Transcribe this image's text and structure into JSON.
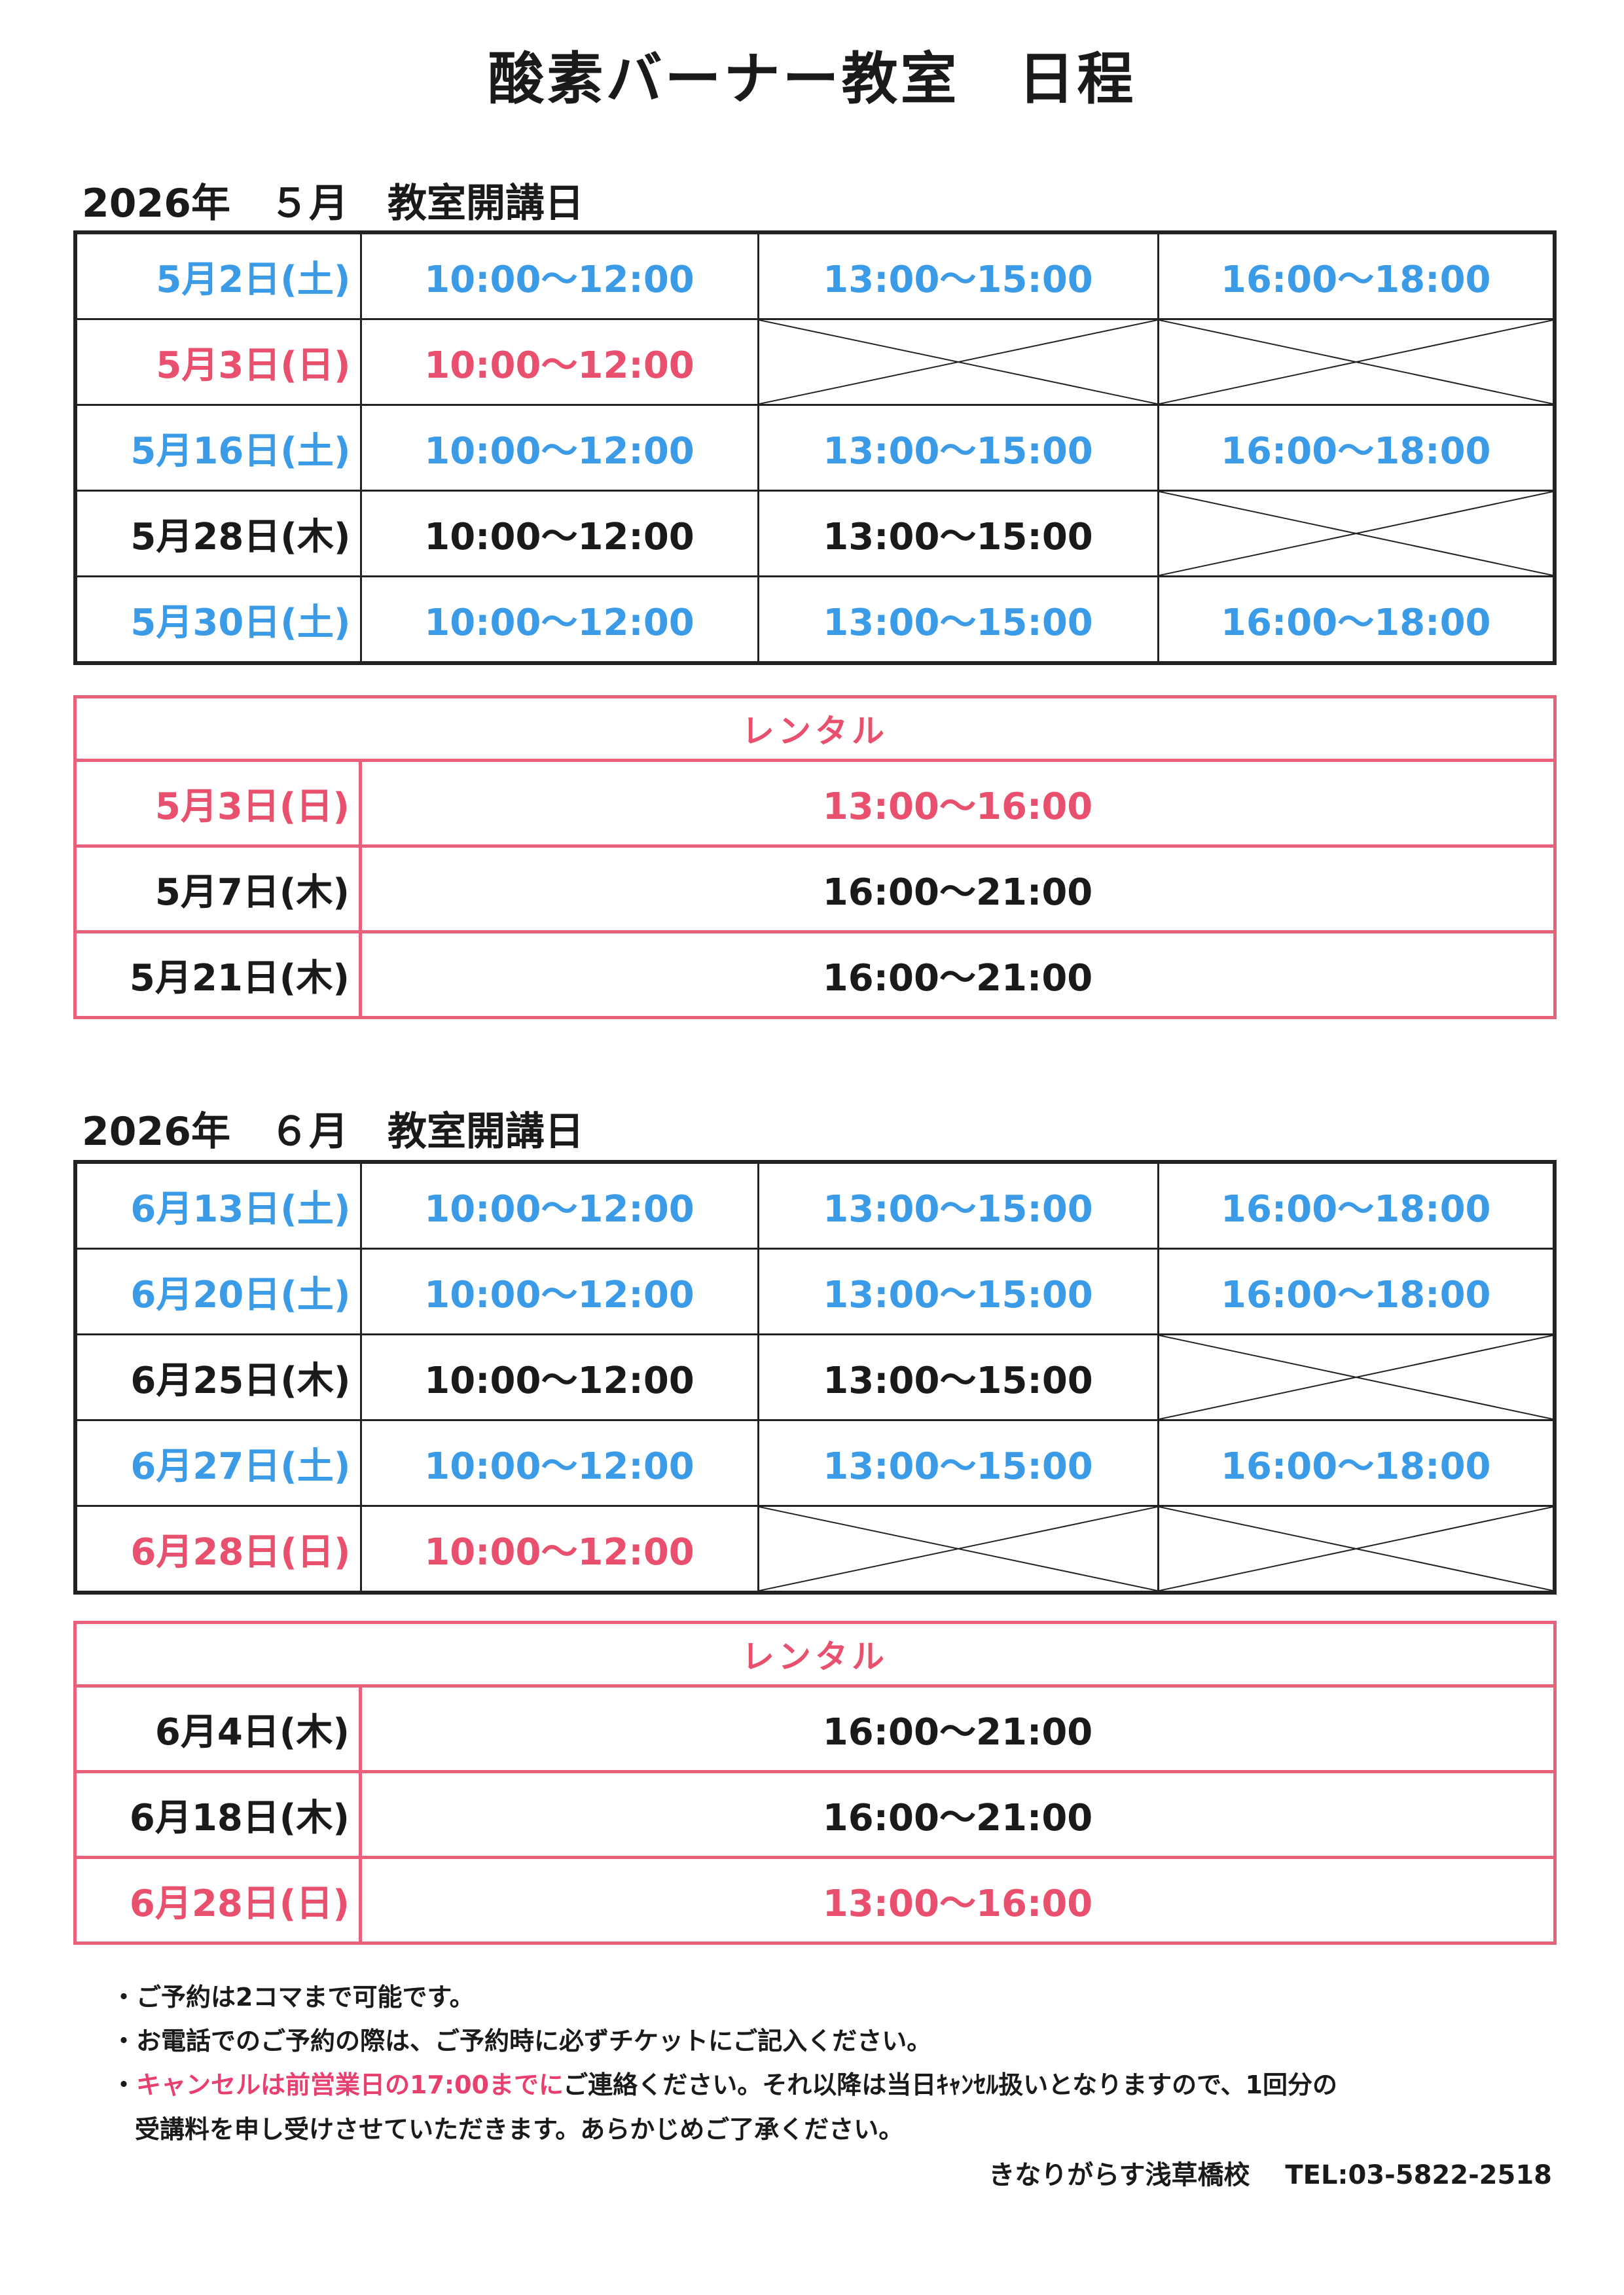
{
  "title": "酸素バーナー教室　日程",
  "colors": {
    "blue": "#3b9be6",
    "red": "#e8506e",
    "rental_border": "#e8607a"
  },
  "sections": [
    {
      "heading": "2026年　５月　教室開講日",
      "schedule": [
        {
          "date": "5月2日(土)",
          "color": "blue",
          "slots": [
            "10:00〜12:00",
            "13:00〜15:00",
            "16:00〜18:00"
          ]
        },
        {
          "date": "5月3日(日)",
          "color": "red",
          "slots": [
            "10:00〜12:00",
            null,
            null
          ]
        },
        {
          "date": "5月16日(土)",
          "color": "blue",
          "slots": [
            "10:00〜12:00",
            "13:00〜15:00",
            "16:00〜18:00"
          ]
        },
        {
          "date": "5月28日(木)",
          "color": "black",
          "slots": [
            "10:00〜12:00",
            "13:00〜15:00",
            null
          ]
        },
        {
          "date": "5月30日(土)",
          "color": "blue",
          "slots": [
            "10:00〜12:00",
            "13:00〜15:00",
            "16:00〜18:00"
          ]
        }
      ],
      "rental_label": "レンタル",
      "rental": [
        {
          "date": "5月3日(日)",
          "color": "red",
          "time": "13:00〜16:00"
        },
        {
          "date": "5月7日(木)",
          "color": "black",
          "time": "16:00〜21:00"
        },
        {
          "date": "5月21日(木)",
          "color": "black",
          "time": "16:00〜21:00"
        }
      ]
    },
    {
      "heading": "2026年　６月　教室開講日",
      "schedule": [
        {
          "date": "6月13日(土)",
          "color": "blue",
          "slots": [
            "10:00〜12:00",
            "13:00〜15:00",
            "16:00〜18:00"
          ]
        },
        {
          "date": "6月20日(土)",
          "color": "blue",
          "slots": [
            "10:00〜12:00",
            "13:00〜15:00",
            "16:00〜18:00"
          ]
        },
        {
          "date": "6月25日(木)",
          "color": "black",
          "slots": [
            "10:00〜12:00",
            "13:00〜15:00",
            null
          ]
        },
        {
          "date": "6月27日(土)",
          "color": "blue",
          "slots": [
            "10:00〜12:00",
            "13:00〜15:00",
            "16:00〜18:00"
          ]
        },
        {
          "date": "6月28日(日)",
          "color": "red",
          "slots": [
            "10:00〜12:00",
            null,
            null
          ]
        }
      ],
      "rental_label": "レンタル",
      "rental": [
        {
          "date": "6月4日(木)",
          "color": "black",
          "time": "16:00〜21:00"
        },
        {
          "date": "6月18日(木)",
          "color": "black",
          "time": "16:00〜21:00"
        },
        {
          "date": "6月28日(日)",
          "color": "red",
          "time": "13:00〜16:00"
        }
      ]
    }
  ],
  "notes": {
    "line1": "・ご予約は2コマまで可能です。",
    "line2": "・お電話でのご予約の際は、ご予約時に必ずチケットにご記入ください。",
    "line3_bullet": "・",
    "line3_highlight": "キャンセルは前営業日の17:00までに",
    "line3_rest": "ご連絡ください。それ以降は当日ｷｬﾝｾﾙ扱いとなりますので、1回分の",
    "line4": "受講料を申し受けさせていただきます。あらかじめご了承ください。"
  },
  "contact": "きなりがらす浅草橋校　 TEL:03-5822-2518"
}
